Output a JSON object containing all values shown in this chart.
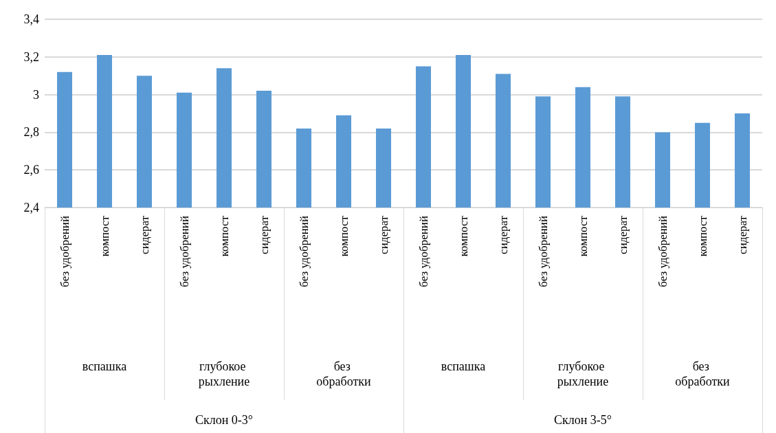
{
  "chart_data": {
    "type": "bar",
    "categories": [
      "без удобрений",
      "компост",
      "сидерат",
      "без удобрений",
      "компост",
      "сидерат",
      "без удобрений",
      "компост",
      "сидерат",
      "без удобрений",
      "компост",
      "сидерат",
      "без удобрений",
      "компост",
      "сидерат",
      "без удобрений",
      "компост",
      "сидерат"
    ],
    "values": [
      3.12,
      3.21,
      3.1,
      3.01,
      3.14,
      3.02,
      2.82,
      2.89,
      2.82,
      3.15,
      3.21,
      3.11,
      2.99,
      3.04,
      2.99,
      2.8,
      2.85,
      2.9
    ],
    "color": "#5b9bd5",
    "ylim": [
      2.4,
      3.4
    ],
    "yticks": [
      {
        "value": 2.4,
        "label": "2,4"
      },
      {
        "value": 2.6,
        "label": "2,6"
      },
      {
        "value": 2.8,
        "label": "2,8"
      },
      {
        "value": 3,
        "label": "3"
      },
      {
        "value": 3.2,
        "label": "3,2"
      },
      {
        "value": 3.4,
        "label": "3,4"
      }
    ],
    "grid": true,
    "annotations": [
      "вспашка",
      "глубокое рыхление",
      "без обработки",
      "вспашка",
      "глубокое рыхление",
      "без обработки",
      "Склон 0-3°",
      "Склон 3-5°"
    ]
  }
}
